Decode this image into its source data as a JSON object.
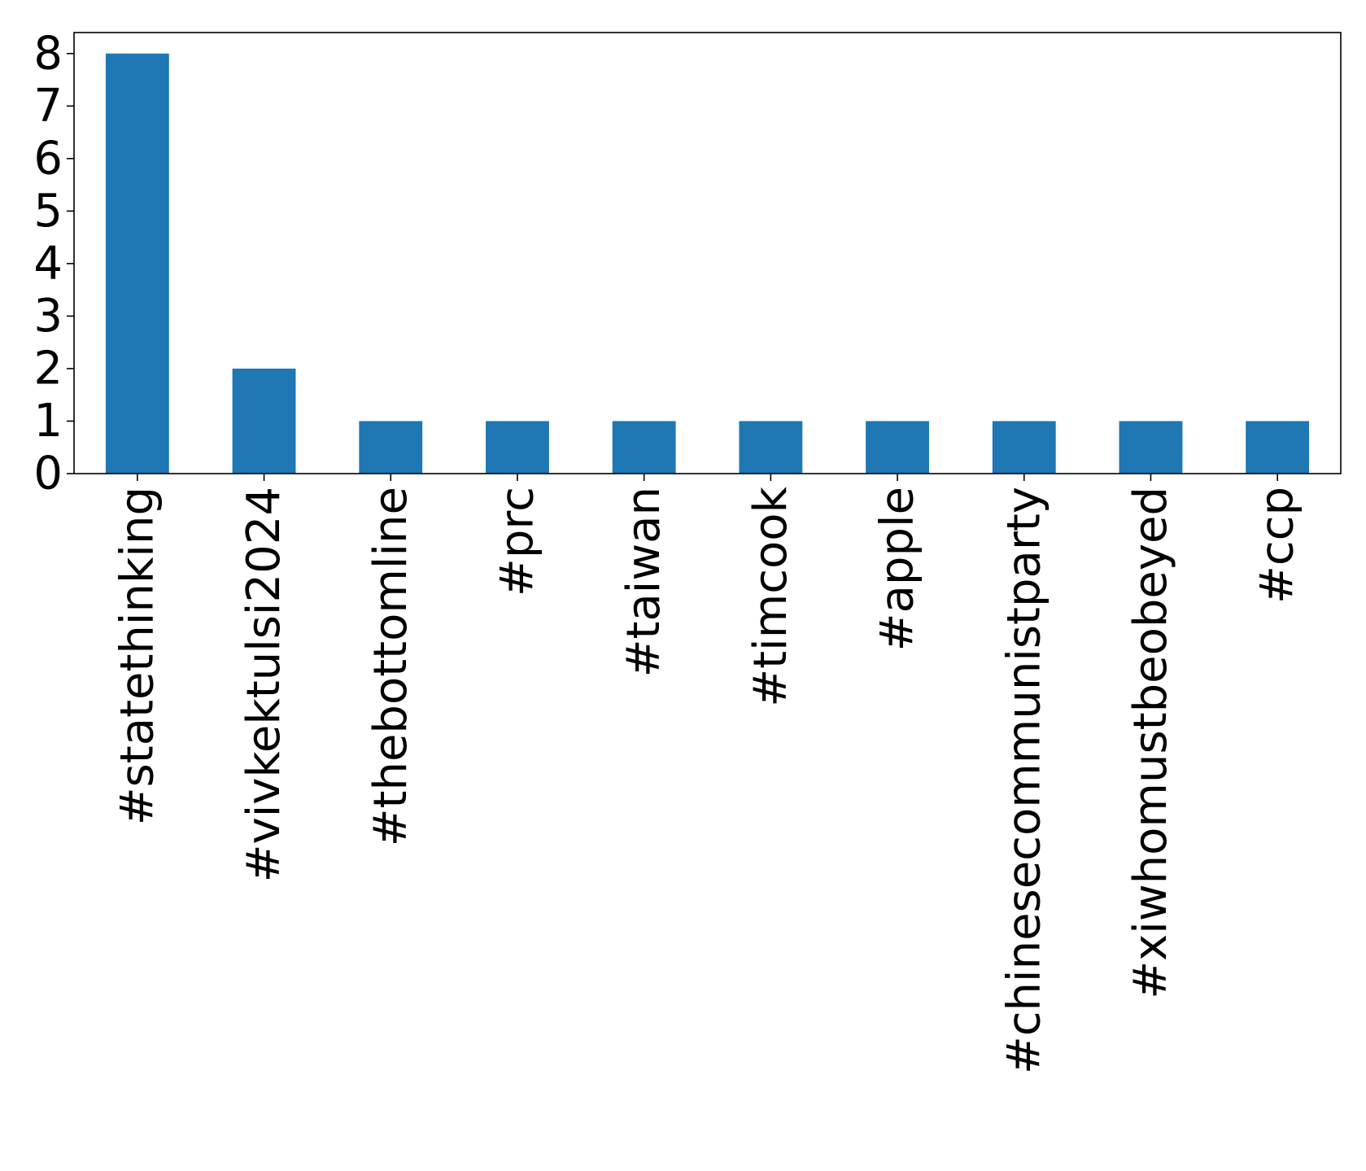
{
  "chart_data": {
    "type": "bar",
    "categories": [
      "#statethinking",
      "#vivkektulsi2024",
      "#thebottomline",
      "#prc",
      "#taiwan",
      "#timcook",
      "#apple",
      "#chinesecommunistparty",
      "#xiwhomustbeobeyed",
      "#ccp"
    ],
    "values": [
      8,
      2,
      1,
      1,
      1,
      1,
      1,
      1,
      1,
      1
    ],
    "title": "",
    "xlabel": "",
    "ylabel": "",
    "ylim": [
      0,
      8.4
    ],
    "yticks": [
      0,
      1,
      2,
      3,
      4,
      5,
      6,
      7,
      8
    ],
    "grid": false,
    "legend": "none",
    "colors": {
      "bar": "#1f77b4",
      "axis": "#000000",
      "background": "#ffffff"
    }
  }
}
